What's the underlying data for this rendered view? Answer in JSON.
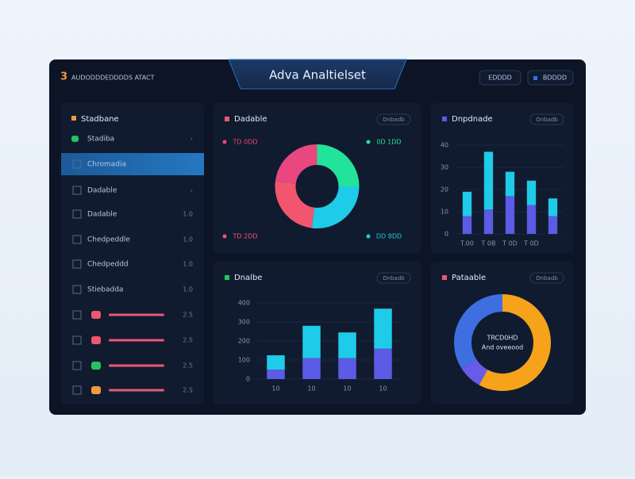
{
  "header": {
    "logo": "AUDODDDEDDDDS ATACT",
    "title": "Adva Analtielset",
    "buttons": [
      "EDDDD",
      "BDDDD"
    ]
  },
  "sidebar": {
    "title": "Stadbane",
    "items": [
      {
        "label": "Stadiba",
        "meta": "›"
      },
      {
        "label": "Chromadia",
        "meta": "›"
      },
      {
        "label": "Dadable",
        "meta": "›"
      },
      {
        "label": "Dadable",
        "meta": "1.0"
      },
      {
        "label": "Chedpeddle",
        "meta": "1.0"
      },
      {
        "label": "Chedpeddd",
        "meta": "1.0"
      },
      {
        "label": "Stiebadda",
        "meta": "1.0"
      },
      {
        "meta": "2.5"
      },
      {
        "meta": "2.5"
      },
      {
        "meta": "2.5"
      },
      {
        "meta": "2.5"
      }
    ]
  },
  "chart_data": [
    {
      "type": "pie",
      "title": "Dadable",
      "button": "Dnbadb",
      "categories": [
        "0D 1DD",
        "DD 8DD",
        "TD 2DD",
        "TD 0DD"
      ],
      "values": [
        25,
        27,
        25,
        23
      ],
      "colors": [
        "#22e39a",
        "#1ecbe8",
        "#f2566e",
        "#e8487f"
      ]
    },
    {
      "type": "bar",
      "title": "Dnpdnade",
      "button": "Dnbadb",
      "categories": [
        "T.00",
        "T 0B",
        "T 0D",
        "T 0D",
        null
      ],
      "series": [
        {
          "color": "#5b5be6",
          "values": [
            8,
            11,
            17,
            13,
            8
          ]
        },
        {
          "color": "#1ecbe8",
          "values": [
            11,
            26,
            11,
            11,
            8
          ]
        }
      ],
      "ylim": [
        0,
        40
      ],
      "yticks": [
        0,
        10,
        20,
        30,
        40
      ],
      "grid": true
    },
    {
      "type": "bar",
      "title": "Dnalbe",
      "button": "Dnbadb",
      "categories": [
        "10",
        "10",
        "10",
        "10"
      ],
      "series": [
        {
          "color": "#5b5be6",
          "values": [
            50,
            110,
            110,
            160
          ]
        },
        {
          "color": "#1ecbe8",
          "values": [
            75,
            170,
            135,
            210
          ]
        }
      ],
      "ylim": [
        0,
        400
      ],
      "yticks": [
        0,
        100,
        200,
        300,
        400
      ],
      "grid": true
    },
    {
      "type": "pie",
      "title": "Pataable",
      "button": "Dnbadb",
      "center_label": [
        "TRCD0HD",
        "And oveeood"
      ],
      "values": [
        58,
        8,
        34
      ],
      "colors": [
        "#f7a21b",
        "#6a5ae8",
        "#3d6fe0"
      ]
    }
  ]
}
